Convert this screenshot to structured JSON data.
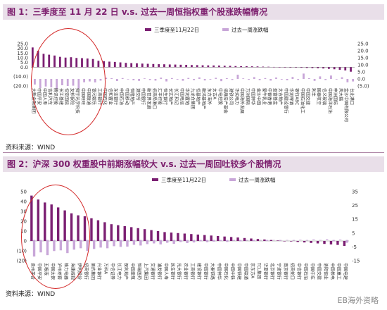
{
  "chart_data": [
    {
      "type": "bar",
      "title": "图 1：三季度至 11 月 22 日 v.s. 过去一周恒指权重个股涨跌幅情况",
      "source": "资料来源：WIND",
      "legend_position": "top-center",
      "categories": [
        "大新金融集团",
        "中国平安",
        "中国人寿",
        "吉利汽车",
        "腾讯控股",
        "长江基建",
        "恒安国际",
        "友邦保险",
        "舜宇光学科技",
        "中国旺旺",
        "中国联通",
        "银河娱乐",
        "工商银行",
        "中国石化",
        "信和置业",
        "东亚银行",
        "中国石油",
        "中国移动",
        "恒隆地产",
        "港交所",
        "中国银行",
        "新世界发展",
        "招商局港口",
        "汇丰控股",
        "恒生银行",
        "长实地产",
        "长江和记",
        "中国电信",
        "华润置地",
        "九龙仓集团",
        "恒基地产",
        "新鸿基地产",
        "东方海外",
        "太古A",
        "中电控股",
        "领展房产基金",
        "港铁公司",
        "华润电力",
        "中国海外发展",
        "万洲国际",
        "中国神华",
        "金沙中国",
        "蒙牛乳业",
        "中银香港",
        "盈富基金",
        "太古地产",
        "中国建设银行",
        "华润啤酒",
        "银行ABC",
        "中国石油化工",
        "中国交建",
        "利丰",
        "国泰航空",
        "信义玻璃",
        "中国海洋石油",
        "申洲国际",
        "周大福",
        "金沙中国有限公司",
        "台北港口"
      ],
      "series": [
        {
          "name": "三季度至11月22日",
          "values": [
            21,
            17.5,
            14.2,
            13.3,
            12.4,
            11,
            10.2,
            10.6,
            9.8,
            9.6,
            9.2,
            8.7,
            6.8,
            6.4,
            5.9,
            5.6,
            5.1,
            4.6,
            4.3,
            4.1,
            3.8,
            3.6,
            3.4,
            3.2,
            3.1,
            2.9,
            2.8,
            2.6,
            2.5,
            2.3,
            2.2,
            2,
            1.9,
            1.8,
            1.7,
            1.5,
            1.4,
            1.2,
            1.1,
            1,
            0.9,
            0.8,
            0.6,
            0.5,
            0.3,
            0.2,
            0.1,
            -0.2,
            -0.4,
            -0.6,
            -0.8,
            -1,
            -1.2,
            -1.4,
            -1.8,
            -2.2,
            -2.8,
            -3.5,
            -4.8
          ]
        },
        {
          "name": "过去一周涨跌幅",
          "values": [
            -4,
            -6.5,
            -5.4,
            -6,
            -7.2,
            -4.5,
            -5,
            -4.8,
            -6.8,
            -2.4,
            -1.8,
            -2.5,
            -1.2,
            0.8,
            0.5,
            -1.5,
            0.6,
            -0.4,
            -1,
            -1.4,
            0.4,
            -0.8,
            -1.2,
            0.9,
            -1.8,
            0.6,
            -0.5,
            -1.3,
            0.7,
            -0.9,
            1.1,
            -1.1,
            -0.5,
            0.8,
            -1.6,
            0.5,
            -0.7,
            3,
            0.4,
            -0.6,
            1.3,
            -0.9,
            0.6,
            -1.2,
            1,
            -0.5,
            -1,
            1.4,
            -0.7,
            3.8,
            0.5,
            -1.4,
            1.8,
            -0.8,
            2.4,
            -0.4,
            1.2,
            -2.4,
            -1.8
          ]
        }
      ],
      "y_left": {
        "ylim": [
          -20,
          25
        ],
        "ticks": [
          "(20.0)",
          "(10.0)",
          "0.0",
          "5.0",
          "10.0",
          "15.0",
          "20.0",
          "25.0"
        ],
        "tick_values": [
          -20,
          -10,
          0,
          5,
          10,
          15,
          20,
          25
        ]
      },
      "y_right": {
        "ylim": [
          -5,
          25
        ],
        "ticks": [
          "(5.0)",
          "0.0",
          "5.0",
          "10.0",
          "15.0",
          "20.0",
          "25.0"
        ],
        "tick_values": [
          -5,
          0,
          5,
          10,
          15,
          20,
          25
        ]
      },
      "colors": {
        "s1": "#7b1f72",
        "s2": "#c8a6d8"
      }
    },
    {
      "type": "bar",
      "title": "图 2：沪深 300 权重股中前期涨幅较大 v.s. 过去一周回吐较多个股情况",
      "source": "资料来源：WIND",
      "legend_position": "top-center",
      "categories": [
        "贵州茅台",
        "中国平安",
        "五粮液",
        "中国太保",
        "泸州老窖",
        "格力电器",
        "海康威视",
        "伊利股份",
        "招商银行",
        "美的集团",
        "兴业银行",
        "万科A",
        "中信证券",
        "长江电力",
        "保利地产",
        "中国建筑",
        "恒瑞医药",
        "上汽集团",
        "交通银行",
        "浦发银行",
        "中国人寿",
        "民生银行",
        "光大银行",
        "农业银行",
        "工商银行",
        "建设银行",
        "中国银行",
        "大秦铁路",
        "中国神华",
        "中国石化",
        "中国中铁",
        "中国铁建",
        "中国联通",
        "京东方A",
        "TCL集团",
        "华夏银行",
        "北京银行",
        "宁波银行",
        "南京银行",
        "招商蛇口",
        "中信银行",
        "中国石油",
        "中国中车",
        "中国交建",
        "洛阳钼业",
        "中国核电",
        "中国重工",
        "中国电建"
      ],
      "series": [
        {
          "name": "三季度至11月22日",
          "values": [
            46,
            42,
            39,
            37,
            34,
            31,
            28,
            26,
            25,
            23,
            21,
            19,
            17,
            16,
            15,
            14,
            13,
            12,
            11,
            10,
            9,
            8.5,
            8,
            7.5,
            7,
            6.5,
            6,
            5.5,
            5,
            4.5,
            4,
            3.5,
            3,
            2.5,
            2,
            1.5,
            1,
            0.5,
            0,
            -0.5,
            -1,
            -1.5,
            -2,
            -2.5,
            -3,
            -3.5,
            -4,
            -5
          ]
        },
        {
          "name": "过去一周涨跌幅",
          "values": [
            -12,
            -9,
            -11,
            -8,
            -7.5,
            -9.5,
            -7,
            -6,
            -8,
            -6.5,
            -5.5,
            -6,
            -4.5,
            -5,
            -4.8,
            -3.5,
            -4,
            -3,
            -2.5,
            -3.2,
            -2,
            -2.8,
            -1.5,
            -2.2,
            -1.8,
            -1,
            -1.6,
            -1.2,
            -0.8,
            -1.4,
            -0.6,
            -1,
            -0.5,
            -0.9,
            -0.4,
            -0.8,
            -0.3,
            -0.6,
            -0.2,
            -0.5,
            0.3,
            -0.4,
            0.5,
            -0.3,
            0.6,
            -1,
            0.4,
            -2
          ]
        }
      ],
      "y_left": {
        "ylim": [
          -20,
          50
        ],
        "ticks": [
          "(20)",
          "(10)",
          "0",
          "10",
          "20",
          "30",
          "40",
          "50"
        ],
        "tick_values": [
          -20,
          -10,
          0,
          10,
          20,
          30,
          40,
          50
        ]
      },
      "y_right": {
        "ylim": [
          -15,
          35
        ],
        "ticks": [
          "-15",
          "-5",
          "5",
          "15",
          "25",
          "35"
        ],
        "tick_values": [
          -15,
          -5,
          5,
          15,
          25,
          35
        ]
      },
      "colors": {
        "s1": "#7b1f72",
        "s2": "#c8a6d8"
      }
    }
  ],
  "watermark": "EB海外资略"
}
